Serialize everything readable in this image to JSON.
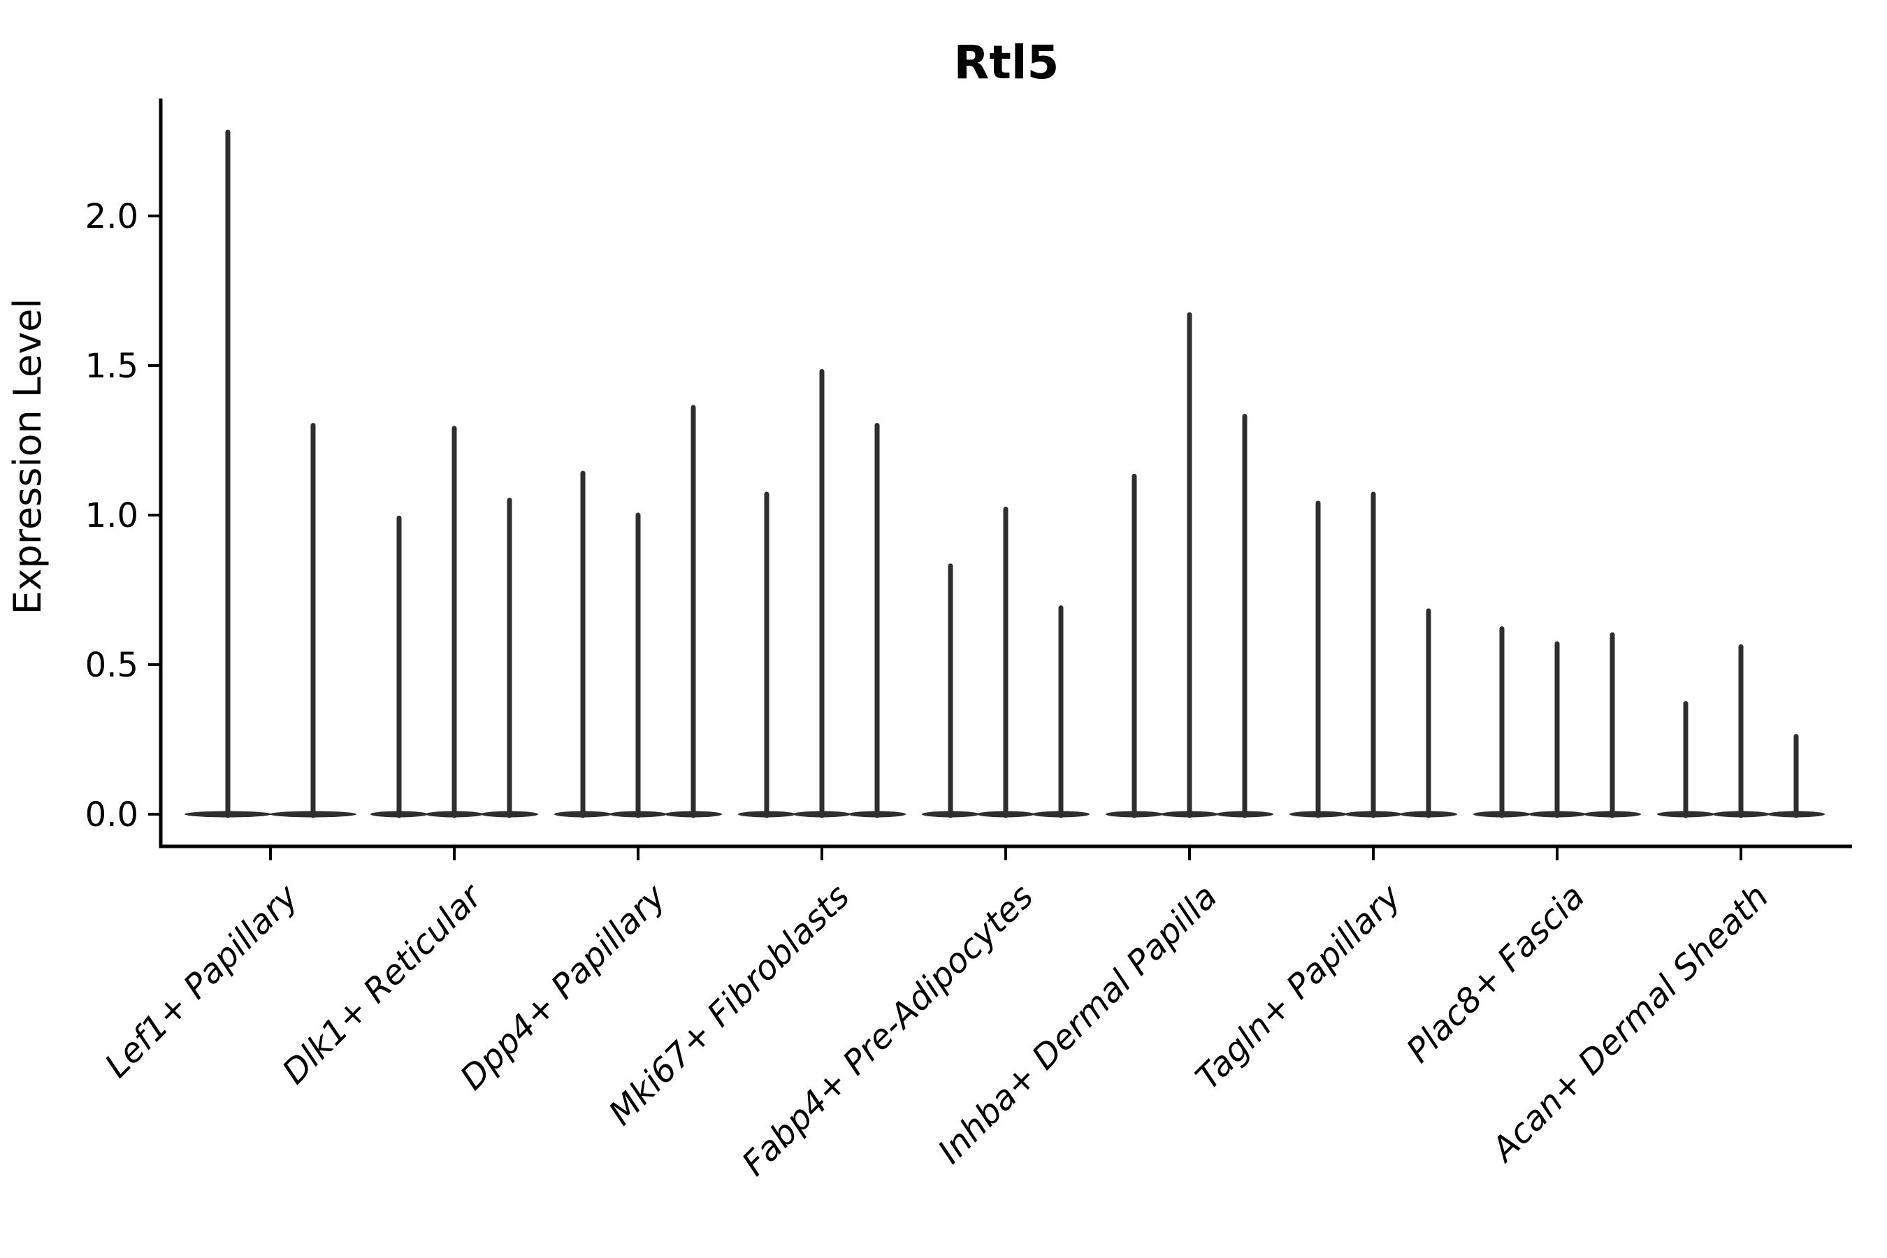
{
  "chart_data": {
    "type": "violin",
    "title": "Rtl5",
    "ylabel": "Expression Level",
    "xlabel": "",
    "ylim": [
      -0.11,
      2.39
    ],
    "yticks": [
      0.0,
      0.5,
      1.0,
      1.5,
      2.0
    ],
    "ytick_labels": [
      "0.0",
      "0.5",
      "1.0",
      "1.5",
      "2.0"
    ],
    "grid": false,
    "legend_position": "none",
    "background": "#ffffff",
    "colors": {
      "ink": "#2e2e2e",
      "axis": "#000000"
    },
    "categories": [
      "Lef1+ Papillary",
      "Dlk1+ Reticular",
      "Dpp4+ Papillary",
      "Mki67+ Fibroblasts",
      "Fabp4+ Pre-Adipocytes",
      "Inhba+ Dermal Papilla",
      "Tagln+ Papillary",
      "Plac8+ Fascia",
      "Acan+ Dermal Sheath"
    ],
    "description": "Violin plot of Rtl5 expression per fibroblast cluster; violins are collapsed to thin spikes (most cells at 0) with a flat base at y=0. max_values lists the top of each thin violin spike within a category, left to right.",
    "violins": [
      {
        "category": "Lef1+ Papillary",
        "max_values": [
          2.28,
          1.3
        ]
      },
      {
        "category": "Dlk1+ Reticular",
        "max_values": [
          0.99,
          1.29,
          1.05
        ]
      },
      {
        "category": "Dpp4+ Papillary",
        "max_values": [
          1.14,
          1.0,
          1.36
        ]
      },
      {
        "category": "Mki67+ Fibroblasts",
        "max_values": [
          1.07,
          1.48,
          1.3
        ]
      },
      {
        "category": "Fabp4+ Pre-Adipocytes",
        "max_values": [
          0.83,
          1.02,
          0.69
        ]
      },
      {
        "category": "Inhba+ Dermal Papilla",
        "max_values": [
          1.13,
          1.67,
          1.33
        ]
      },
      {
        "category": "Tagln+ Papillary",
        "max_values": [
          1.04,
          1.07,
          0.68
        ]
      },
      {
        "category": "Plac8+ Fascia",
        "max_values": [
          0.62,
          0.57,
          0.6
        ]
      },
      {
        "category": "Acan+ Dermal Sheath",
        "max_values": [
          0.37,
          0.56,
          0.26
        ]
      }
    ]
  }
}
